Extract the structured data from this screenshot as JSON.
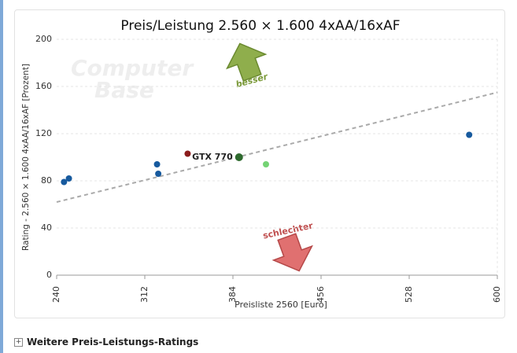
{
  "chart_data": {
    "type": "scatter",
    "title": "Preis/Leistung 2.560 × 1.600 4xAA/16xAF",
    "x_label": "Preisliste 2560 [Euro]",
    "y_label": "Rating - 2.560 × 1.600 4xAA/16xAF [Prozent]",
    "x": [
      246,
      250,
      322,
      323,
      347,
      389,
      411,
      577
    ],
    "values": [
      79,
      82,
      94,
      86,
      103,
      100,
      94,
      119
    ],
    "colors": [
      "#175a9e",
      "#175a9e",
      "#175a9e",
      "#175a9e",
      "#8b1c1c",
      "#2e6a2e",
      "#74d374",
      "#175a9e"
    ],
    "labels": [
      null,
      null,
      null,
      null,
      null,
      "GTX 770",
      null,
      null
    ],
    "trend": {
      "x": [
        240,
        600
      ],
      "y": [
        62,
        155
      ]
    },
    "xlim": [
      240,
      600
    ],
    "xticks": [
      240,
      312,
      384,
      456,
      528,
      600
    ],
    "ylim": [
      0,
      200
    ],
    "yticks": [
      0,
      40,
      80,
      120,
      160,
      200
    ],
    "grid": true,
    "annotations": [
      "besser",
      "schlechter"
    ],
    "watermark": [
      "Computer",
      "Base"
    ]
  },
  "footer": "Weitere Preis-Leistungs-Ratings"
}
